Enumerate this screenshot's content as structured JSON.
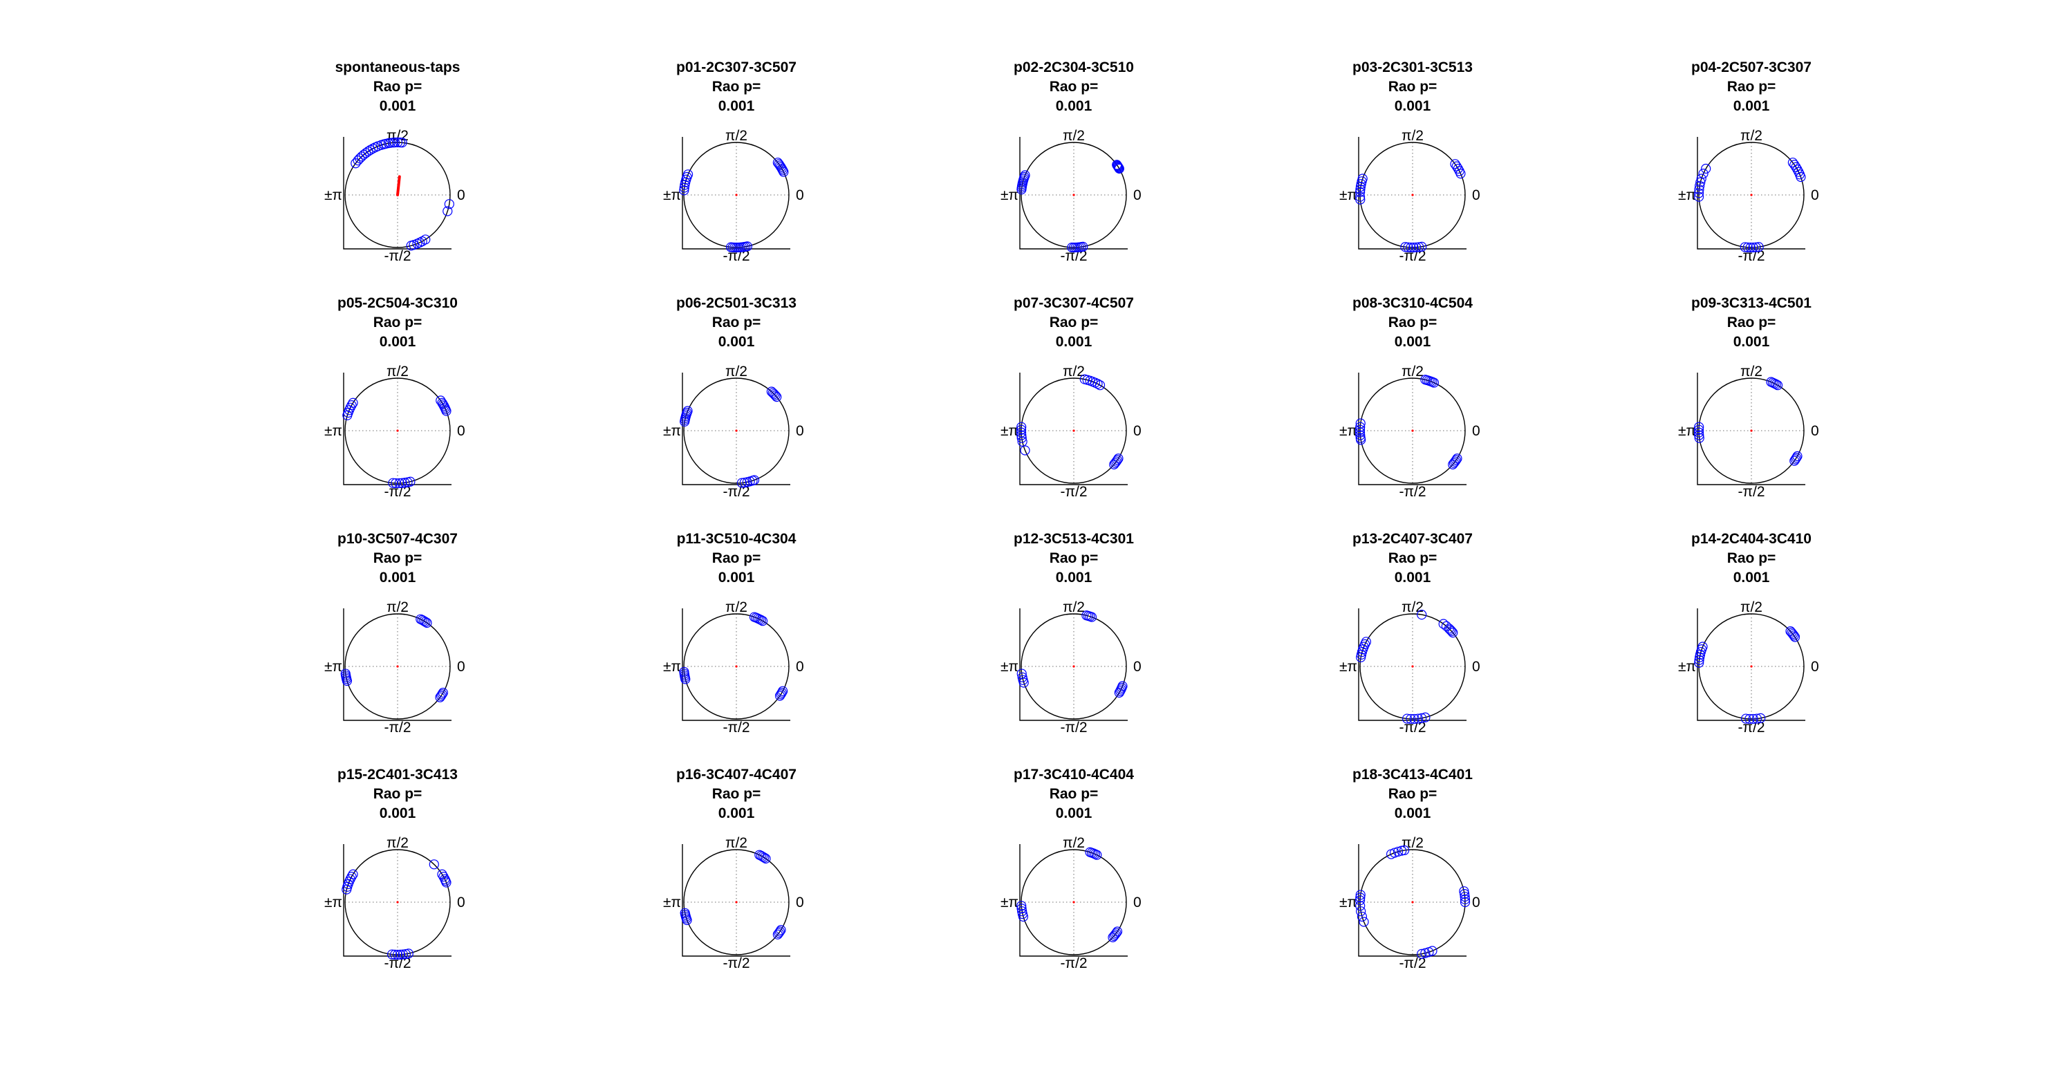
{
  "figure": {
    "background": "#ffffff"
  },
  "colors": {
    "marker": "#0000ff",
    "mean_vector": "#ff0000",
    "axis": "#000000",
    "grid": "#8c8c8c"
  },
  "axis_labels": {
    "top": "π/2",
    "bottom": "-π/2",
    "right": "0",
    "left": "±π"
  },
  "chart_data": [
    {
      "type": "scatter",
      "subtype": "polar-phase",
      "title": "spontaneous-taps",
      "stat_label": "Rao p=",
      "p_value": "0.001",
      "mean_vector": {
        "angle_deg": 84,
        "length": 0.35
      },
      "angles_deg": [
        95,
        98,
        100,
        103,
        105,
        108,
        112,
        115,
        118,
        121,
        124,
        127,
        130,
        133,
        136,
        139,
        143,
        87,
        85,
        90,
        93,
        -10,
        -18,
        -58,
        -62,
        -65,
        -68,
        -72,
        -75
      ]
    },
    {
      "type": "scatter",
      "subtype": "polar-phase",
      "title": "p01-2C307-3C507",
      "stat_label": "Rao p=",
      "p_value": "0.001",
      "mean_vector": {
        "angle_deg": 0,
        "length": 0.02
      },
      "angles_deg": [
        157,
        160,
        163,
        166,
        169,
        172,
        175,
        38,
        36,
        34,
        32,
        30,
        28,
        26,
        -78,
        -80,
        -82,
        -84,
        -86,
        -88,
        -90,
        -92,
        -94,
        -96
      ]
    },
    {
      "type": "scatter",
      "subtype": "polar-phase",
      "title": "p02-2C304-3C510",
      "stat_label": "Rao p=",
      "p_value": "0.001",
      "mean_vector": {
        "angle_deg": 0,
        "length": 0.02
      },
      "angles_deg": [
        158,
        160,
        162,
        164,
        166,
        168,
        170,
        172,
        174,
        30,
        31,
        32,
        33,
        34,
        35,
        -80,
        -82,
        -84,
        -86,
        -88,
        -90,
        -92
      ]
    },
    {
      "type": "scatter",
      "subtype": "polar-phase",
      "title": "p03-2C301-3C513",
      "stat_label": "Rao p=",
      "p_value": "0.001",
      "mean_vector": {
        "angle_deg": 0,
        "length": 0.02
      },
      "angles_deg": [
        162,
        165,
        168,
        171,
        174,
        177,
        -178,
        -175,
        24,
        27,
        30,
        33,
        36,
        -80,
        -83,
        -86,
        -89,
        -92,
        -95,
        -98
      ]
    },
    {
      "type": "scatter",
      "subtype": "polar-phase",
      "title": "p04-2C507-3C307",
      "stat_label": "Rao p=",
      "p_value": "0.001",
      "mean_vector": {
        "angle_deg": 0,
        "length": 0.02
      },
      "angles_deg": [
        150,
        156,
        162,
        166,
        170,
        174,
        178,
        -178,
        20,
        23,
        26,
        29,
        32,
        35,
        38,
        -82,
        -85,
        -88,
        -91,
        -94,
        -97
      ]
    },
    {
      "type": "scatter",
      "subtype": "polar-phase",
      "title": "p05-2C504-3C310",
      "stat_label": "Rao p=",
      "p_value": "0.001",
      "mean_vector": {
        "angle_deg": 0,
        "length": 0.02
      },
      "angles_deg": [
        148,
        151,
        154,
        157,
        160,
        163,
        35,
        32,
        30,
        28,
        26,
        24,
        22,
        -95,
        -92,
        -88,
        -85,
        -82,
        -79,
        -76
      ]
    },
    {
      "type": "scatter",
      "subtype": "polar-phase",
      "title": "p06-2C501-3C313",
      "stat_label": "Rao p=",
      "p_value": "0.001",
      "mean_vector": {
        "angle_deg": 0,
        "length": 0.02
      },
      "angles_deg": [
        158,
        160,
        162,
        164,
        166,
        168,
        170,
        48,
        46,
        44,
        42,
        40,
        -84,
        -81,
        -78,
        -75,
        -72,
        -70
      ]
    },
    {
      "type": "scatter",
      "subtype": "polar-phase",
      "title": "p07-3C307-4C507",
      "stat_label": "Rao p=",
      "p_value": "0.001",
      "mean_vector": {
        "angle_deg": 0,
        "length": 0.02
      },
      "angles_deg": [
        78,
        75,
        72,
        69,
        66,
        63,
        60,
        176,
        179,
        -178,
        -175,
        -172,
        -168,
        -158,
        -40,
        -38,
        -36,
        -34,
        -32
      ]
    },
    {
      "type": "scatter",
      "subtype": "polar-phase",
      "title": "p08-3C310-4C504",
      "stat_label": "Rao p=",
      "p_value": "0.001",
      "mean_vector": {
        "angle_deg": 0,
        "length": 0.02
      },
      "angles_deg": [
        76,
        74,
        72,
        70,
        68,
        66,
        172,
        176,
        179,
        -178,
        -175,
        -172,
        -170,
        -40,
        -38,
        -36,
        -34,
        -32
      ]
    },
    {
      "type": "scatter",
      "subtype": "polar-phase",
      "title": "p09-3C313-4C501",
      "stat_label": "Rao p=",
      "p_value": "0.001",
      "mean_vector": {
        "angle_deg": 0,
        "length": 0.02
      },
      "angles_deg": [
        68,
        66,
        64,
        62,
        60,
        176,
        179,
        -178,
        -175,
        -172,
        -35,
        -33,
        -31,
        -29
      ]
    },
    {
      "type": "scatter",
      "subtype": "polar-phase",
      "title": "p10-3C507-4C307",
      "stat_label": "Rao p=",
      "p_value": "0.001",
      "mean_vector": {
        "angle_deg": 0,
        "length": 0.02
      },
      "angles_deg": [
        64,
        62,
        60,
        58,
        56,
        -172,
        -170,
        -168,
        -166,
        -164,
        -36,
        -34,
        -32,
        -30
      ]
    },
    {
      "type": "scatter",
      "subtype": "polar-phase",
      "title": "p11-3C510-4C304",
      "stat_label": "Rao p=",
      "p_value": "0.001",
      "mean_vector": {
        "angle_deg": 0,
        "length": 0.02
      },
      "angles_deg": [
        70,
        68,
        66,
        64,
        62,
        60,
        -174,
        -172,
        -170,
        -168,
        -166,
        -34,
        -32,
        -30,
        -28
      ]
    },
    {
      "type": "scatter",
      "subtype": "polar-phase",
      "title": "p12-3C513-4C301",
      "stat_label": "Rao p=",
      "p_value": "0.001",
      "mean_vector": {
        "angle_deg": 0,
        "length": 0.02
      },
      "angles_deg": [
        76,
        74,
        72,
        70,
        -172,
        -168,
        -165,
        -162,
        -30,
        -28,
        -26,
        -24,
        -22
      ]
    },
    {
      "type": "scatter",
      "subtype": "polar-phase",
      "title": "p13-2C407-3C407",
      "stat_label": "Rao p=",
      "p_value": "0.001",
      "mean_vector": {
        "angle_deg": 0,
        "length": 0.02
      },
      "angles_deg": [
        152,
        155,
        158,
        161,
        164,
        167,
        170,
        54,
        50,
        46,
        44,
        42,
        40,
        80,
        -76,
        -80,
        -84,
        -88,
        -92,
        -96
      ]
    },
    {
      "type": "scatter",
      "subtype": "polar-phase",
      "title": "p14-2C404-3C410",
      "stat_label": "Rao p=",
      "p_value": "0.001",
      "mean_vector": {
        "angle_deg": 0,
        "length": 0.02
      },
      "angles_deg": [
        158,
        161,
        164,
        167,
        170,
        173,
        176,
        42,
        40,
        38,
        36,
        34,
        -80,
        -84,
        -88,
        -92,
        -96
      ]
    },
    {
      "type": "scatter",
      "subtype": "polar-phase",
      "title": "p15-2C401-3C413",
      "stat_label": "Rao p=",
      "p_value": "0.001",
      "mean_vector": {
        "angle_deg": 0,
        "length": 0.02
      },
      "angles_deg": [
        148,
        151,
        154,
        157,
        160,
        163,
        166,
        32,
        29,
        26,
        24,
        22,
        46,
        -78,
        -81,
        -84,
        -87,
        -90,
        -93,
        -96
      ]
    },
    {
      "type": "scatter",
      "subtype": "polar-phase",
      "title": "p16-3C407-4C407",
      "stat_label": "Rao p=",
      "p_value": "0.001",
      "mean_vector": {
        "angle_deg": 0,
        "length": 0.02
      },
      "angles_deg": [
        64,
        62,
        60,
        58,
        56,
        -168,
        -166,
        -164,
        -162,
        -160,
        -38,
        -36,
        -34,
        -32
      ]
    },
    {
      "type": "scatter",
      "subtype": "polar-phase",
      "title": "p17-3C410-4C404",
      "stat_label": "Rao p=",
      "p_value": "0.001",
      "mean_vector": {
        "angle_deg": 0,
        "length": 0.02
      },
      "angles_deg": [
        72,
        70,
        68,
        66,
        64,
        -176,
        -173,
        -170,
        -167,
        -164,
        -42,
        -40,
        -38,
        -36,
        -34
      ]
    },
    {
      "type": "scatter",
      "subtype": "polar-phase",
      "title": "p18-3C413-4C401",
      "stat_label": "Rao p=",
      "p_value": "0.001",
      "mean_vector": {
        "angle_deg": 0,
        "length": 0.02
      },
      "angles_deg": [
        114,
        110,
        106,
        102,
        99,
        172,
        175,
        178,
        -176,
        -170,
        -164,
        -158,
        12,
        9,
        6,
        3,
        0,
        -68,
        -72,
        -76,
        -80
      ]
    }
  ]
}
